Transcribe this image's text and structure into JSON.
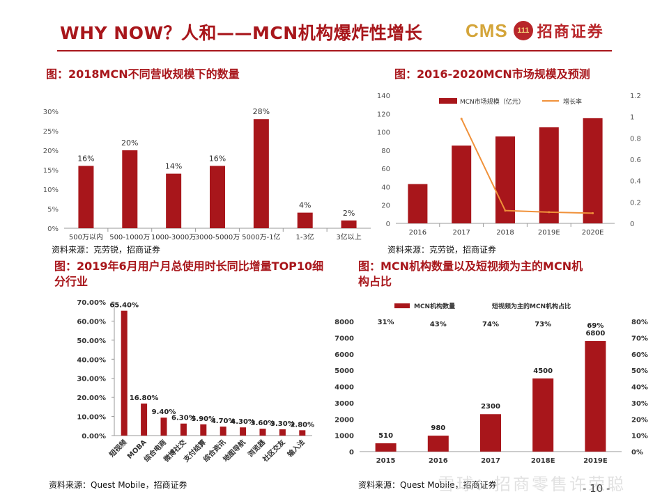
{
  "header": {
    "title": "WHY NOW？人和——MCN机构爆炸性增长",
    "logo_text": "CMS",
    "logo_badge": "111",
    "logo_cn": "招商证券"
  },
  "footer": {
    "page": "- 10 -",
    "watermark": "雪球：招商零售许荣聪"
  },
  "panels": {
    "c1": {
      "title": "图：2018MCN不同营收规模下的数量",
      "source": "资料来源：克劳锐，招商证券"
    },
    "c2": {
      "title": "图：2016-2020MCN市场规模及预测",
      "source": "资料来源：克劳锐，招商证券"
    },
    "c3": {
      "title_line1": "图：2019年6月用户月总使用时长同比增量TOP10细",
      "title_line2": "分行业",
      "source": "资料来源：Quest Mobile，招商证券"
    },
    "c4": {
      "title_line1": "图：MCN机构数量以及短视频为主的MCN机",
      "title_line2": "构占比",
      "source": "资料来源：Quest Mobile，招商证券"
    }
  },
  "colors": {
    "bar": "#a8161b",
    "line": "#f0913a",
    "axis": "#999999"
  },
  "chart_data": [
    {
      "type": "bar",
      "title": "图：2018MCN不同营收规模下的数量",
      "categories": [
        "500万以内",
        "500-1000万",
        "1000-3000万",
        "3000-5000万",
        "5000万-1亿",
        "1-3亿",
        "3亿以上"
      ],
      "values": [
        16,
        20,
        14,
        16,
        28,
        4,
        2
      ],
      "data_labels": [
        "16%",
        "20%",
        "14%",
        "16%",
        "28%",
        "4%",
        "2%"
      ],
      "yticks": [
        "0%",
        "5%",
        "10%",
        "15%",
        "20%",
        "25%",
        "30%"
      ],
      "ylim": [
        0,
        30
      ]
    },
    {
      "type": "bar",
      "title": "图：2016-2020MCN市场规模及预测",
      "categories": [
        "2016",
        "2017",
        "2018",
        "2019E",
        "2020E"
      ],
      "series": [
        {
          "name": "MCN市场规模（亿元）",
          "type": "bar",
          "axis": "left",
          "values": [
            43,
            85,
            95,
            105,
            115
          ]
        },
        {
          "name": "增长率",
          "type": "line",
          "axis": "right",
          "values": [
            null,
            0.98,
            0.12,
            0.105,
            0.095
          ]
        }
      ],
      "yticks": [
        "0",
        "20",
        "40",
        "60",
        "80",
        "100",
        "120",
        "140"
      ],
      "ylim": [
        0,
        140
      ],
      "y2ticks": [
        "0",
        "0.2",
        "0.4",
        "0.6",
        "0.8",
        "1",
        "1.2"
      ],
      "y2lim": [
        0,
        1.2
      ],
      "legend": "top"
    },
    {
      "type": "bar",
      "title": "图：2019年6月用户月总使用时长同比增量TOP10细分行业",
      "categories": [
        "短视频",
        "MOBA",
        "综合电商",
        "微博社交",
        "支付结算",
        "综合资讯",
        "地图导航",
        "浏览器",
        "社区交友",
        "输入法"
      ],
      "values": [
        65.4,
        16.8,
        9.4,
        6.3,
        5.9,
        4.7,
        4.3,
        3.6,
        3.3,
        2.8
      ],
      "data_labels": [
        "65.40%",
        "16.80%",
        "9.40%",
        "6.30%",
        "5.90%",
        "4.70%",
        "4.30%",
        "3.60%",
        "3.30%",
        "2.80%"
      ],
      "yticks": [
        "0.00%",
        "10.00%",
        "20.00%",
        "30.00%",
        "40.00%",
        "50.00%",
        "60.00%",
        "70.00%"
      ],
      "ylim": [
        0,
        70
      ]
    },
    {
      "type": "bar",
      "title": "图：MCN机构数量以及短视频为主的MCN机构占比",
      "categories": [
        "2015",
        "2016",
        "2017",
        "2018E",
        "2019E"
      ],
      "series": [
        {
          "name": "MCN机构数量",
          "type": "bar",
          "axis": "left",
          "values": [
            510,
            980,
            2300,
            4500,
            6800
          ],
          "data_labels": [
            "510",
            "980",
            "2300",
            "4500",
            "6800"
          ]
        },
        {
          "name": "短视频为主的MCN机构占比",
          "type": "text",
          "axis": "right",
          "values": [
            31,
            43,
            74,
            73,
            69
          ],
          "data_labels": [
            "31%",
            "43%",
            "74%",
            "73%",
            "69%"
          ]
        }
      ],
      "yticks": [
        "0",
        "1000",
        "2000",
        "3000",
        "4000",
        "5000",
        "6000",
        "7000",
        "8000"
      ],
      "ylim": [
        0,
        8000
      ],
      "y2ticks": [
        "0%",
        "10%",
        "20%",
        "30%",
        "40%",
        "50%",
        "60%",
        "70%",
        "80%"
      ],
      "y2lim": [
        0,
        80
      ],
      "legend": "top"
    }
  ]
}
